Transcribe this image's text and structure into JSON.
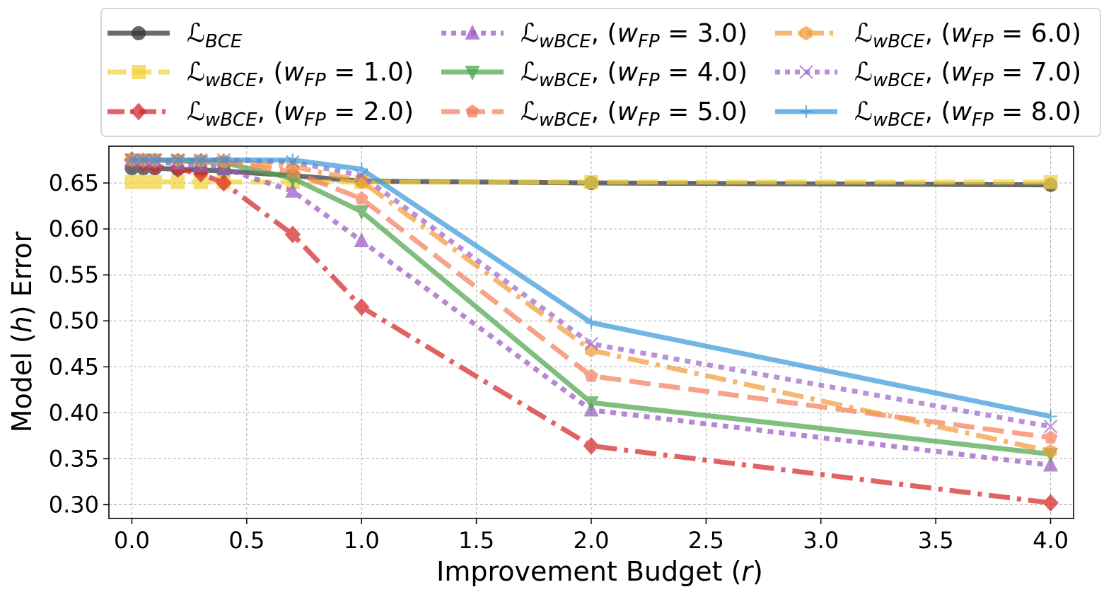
{
  "chart_data": {
    "type": "line",
    "xlabel": "Improvement Budget (r)",
    "xlabel_parts": [
      "Improvement Budget (",
      "r",
      ")"
    ],
    "ylabel": "Model (h) Error",
    "ylabel_parts": [
      "Model (",
      "h",
      ") Error"
    ],
    "xlim": [
      -0.1,
      4.1
    ],
    "ylim": [
      0.285,
      0.69
    ],
    "xticks": [
      0.0,
      0.5,
      1.0,
      1.5,
      2.0,
      2.5,
      3.0,
      3.5,
      4.0
    ],
    "xtick_labels": [
      "0.0",
      "0.5",
      "1.0",
      "1.5",
      "2.0",
      "2.5",
      "3.0",
      "3.5",
      "4.0"
    ],
    "yticks": [
      0.3,
      0.35,
      0.4,
      0.45,
      0.5,
      0.55,
      0.6,
      0.65
    ],
    "ytick_labels": [
      "0.30",
      "0.35",
      "0.40",
      "0.45",
      "0.50",
      "0.55",
      "0.60",
      "0.65"
    ],
    "grid": true,
    "legend_location": "top (above plot), 3 columns",
    "x": [
      0.0,
      0.05,
      0.1,
      0.2,
      0.3,
      0.4,
      0.7,
      1.0,
      2.0,
      4.0
    ],
    "series": [
      {
        "name": "L_BCE",
        "label_main": "ℒ",
        "label_sub": "BCE",
        "label_weight": "",
        "color": "#333333",
        "marker": "circle",
        "dash": "solid",
        "values": [
          0.666,
          0.666,
          0.666,
          0.665,
          0.664,
          0.663,
          0.658,
          0.652,
          0.65,
          0.648
        ]
      },
      {
        "name": "L_wBCE (w_FP = 1.0)",
        "label_main": "ℒ",
        "label_sub": "wBCE",
        "label_weight": "1.0",
        "color": "#f2d43a",
        "marker": "square",
        "dash": "dashed",
        "values": [
          0.651,
          0.651,
          0.651,
          0.651,
          0.651,
          0.651,
          0.651,
          0.651,
          0.651,
          0.651
        ]
      },
      {
        "name": "L_wBCE (w_FP = 2.0)",
        "label_main": "ℒ",
        "label_sub": "wBCE",
        "label_weight": "2.0",
        "color": "#d62728",
        "marker": "diamond",
        "dash": "dashdot",
        "values": [
          0.675,
          0.671,
          0.668,
          0.665,
          0.66,
          0.65,
          0.594,
          0.515,
          0.364,
          0.302
        ]
      },
      {
        "name": "L_wBCE (w_FP = 3.0)",
        "label_main": "ℒ",
        "label_sub": "wBCE",
        "label_weight": "3.0",
        "color": "#9b59c4",
        "marker": "triangle-up",
        "dash": "dotted",
        "values": [
          0.675,
          0.674,
          0.673,
          0.671,
          0.669,
          0.666,
          0.641,
          0.587,
          0.403,
          0.343
        ]
      },
      {
        "name": "L_wBCE (w_FP = 4.0)",
        "label_main": "ℒ",
        "label_sub": "wBCE",
        "label_weight": "4.0",
        "color": "#4fa64f",
        "marker": "triangle-down",
        "dash": "solid",
        "values": [
          0.675,
          0.675,
          0.675,
          0.674,
          0.673,
          0.672,
          0.655,
          0.619,
          0.411,
          0.355
        ]
      },
      {
        "name": "L_wBCE (w_FP = 5.0)",
        "label_main": "ℒ",
        "label_sub": "wBCE",
        "label_weight": "5.0",
        "color": "#f4805c",
        "marker": "pentagon",
        "dash": "dashed",
        "values": [
          0.675,
          0.675,
          0.675,
          0.675,
          0.674,
          0.673,
          0.662,
          0.633,
          0.44,
          0.373
        ]
      },
      {
        "name": "L_wBCE (w_FP = 6.0)",
        "label_main": "ℒ",
        "label_sub": "wBCE",
        "label_weight": "6.0",
        "color": "#f39c3a",
        "marker": "hexagon",
        "dash": "dashdot",
        "values": [
          0.675,
          0.675,
          0.675,
          0.675,
          0.675,
          0.674,
          0.668,
          0.652,
          0.468,
          0.358
        ]
      },
      {
        "name": "L_wBCE (w_FP = 7.0)",
        "label_main": "ℒ",
        "label_sub": "wBCE",
        "label_weight": "7.0",
        "color": "#a066cc",
        "marker": "x",
        "dash": "dotted",
        "values": [
          0.675,
          0.675,
          0.675,
          0.675,
          0.675,
          0.675,
          0.673,
          0.658,
          0.475,
          0.385
        ]
      },
      {
        "name": "L_wBCE (w_FP = 8.0)",
        "label_main": "ℒ",
        "label_sub": "wBCE",
        "label_weight": "8.0",
        "color": "#3a9ad9",
        "marker": "plus",
        "dash": "solid",
        "values": [
          0.675,
          0.675,
          0.675,
          0.675,
          0.675,
          0.675,
          0.675,
          0.665,
          0.498,
          0.396
        ]
      }
    ]
  }
}
